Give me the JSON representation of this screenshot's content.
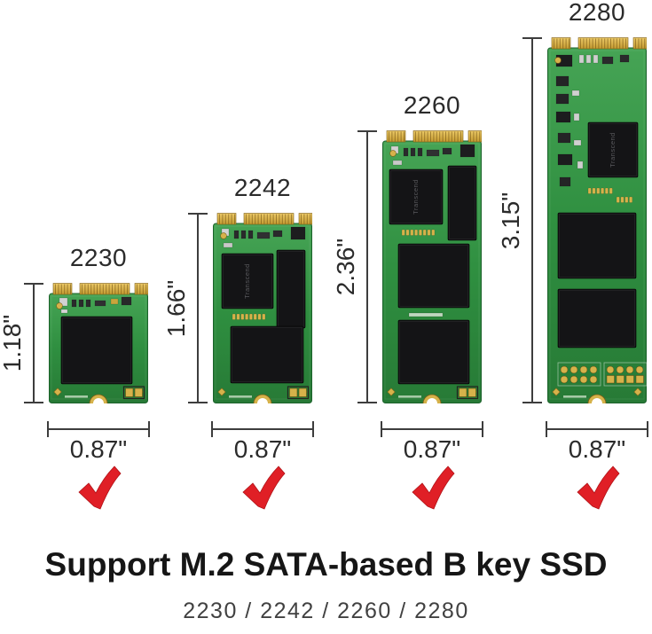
{
  "figure": {
    "caption_title": "Support M.2 SATA-based B key SSD",
    "caption_subtitle": "2230 / 2242 / 2260 / 2280"
  },
  "colors": {
    "pcb_green": "#2f8f40",
    "pcb_green_light": "#46a455",
    "pcb_green_dark": "#277a36",
    "gold": "#d6b24a",
    "gold_dark": "#7c5e14",
    "chip_black": "#141416",
    "check_red": "#e01f26",
    "dimension_gray": "#3d3d3d",
    "label_text": "#2b2b2b"
  },
  "cards": [
    {
      "size_label": "2230",
      "height_label": "1.18\"",
      "width_label": "0.87\"",
      "chip_brand": "",
      "checked": true
    },
    {
      "size_label": "2242",
      "height_label": "1.66\"",
      "width_label": "0.87\"",
      "chip_brand": "Transcend",
      "checked": true
    },
    {
      "size_label": "2260",
      "height_label": "2.36\"",
      "width_label": "0.87\"",
      "chip_brand": "Transcend",
      "checked": true
    },
    {
      "size_label": "2280",
      "height_label": "3.15\"",
      "width_label": "0.87\"",
      "chip_brand": "Transcend",
      "checked": true
    }
  ]
}
